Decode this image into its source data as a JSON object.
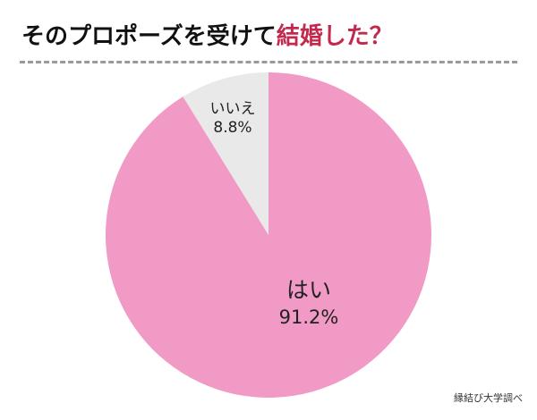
{
  "title": {
    "main": "そのプロポーズを受けて",
    "highlight": "結婚した？"
  },
  "source": "縁結び大学調べ",
  "colors": {
    "yes": "#f29ac6",
    "no": "#e9e9e9",
    "highlight": "#c3284d"
  },
  "chart_data": {
    "type": "pie",
    "title": "そのプロポーズを受けて結婚した？",
    "slices": [
      {
        "label": "いいえ",
        "value": 8.8,
        "display": "8.8%",
        "color": "#e9e9e9"
      },
      {
        "label": "はい",
        "value": 91.2,
        "display": "91.2%",
        "color": "#f29ac6"
      }
    ],
    "start": "12 o'clock",
    "legend": "none"
  }
}
